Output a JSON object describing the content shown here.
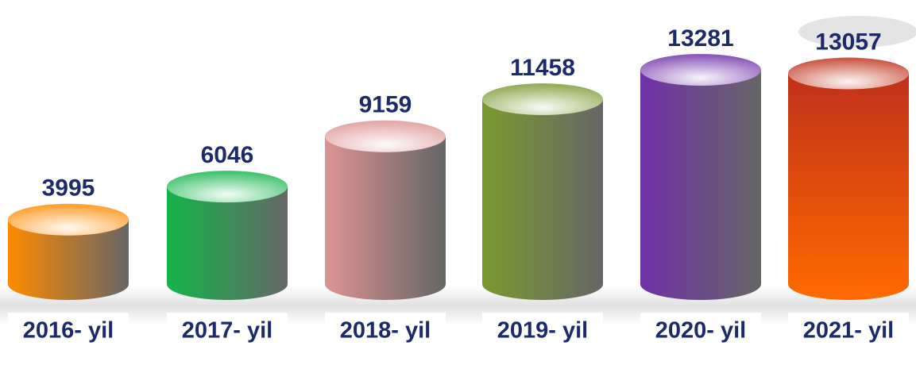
{
  "chart_data": {
    "type": "bar",
    "categories": [
      "2016- yil",
      "2017- yil",
      "2018- yil",
      "2019- yil",
      "2020- yil",
      "2021- yil"
    ],
    "values": [
      3995,
      6046,
      9159,
      11458,
      13281,
      13057
    ],
    "colors": [
      "#ff8a00",
      "#13b54a",
      "#dc9392",
      "#7a9a30",
      "#7030a8",
      "#c0301a"
    ]
  }
}
